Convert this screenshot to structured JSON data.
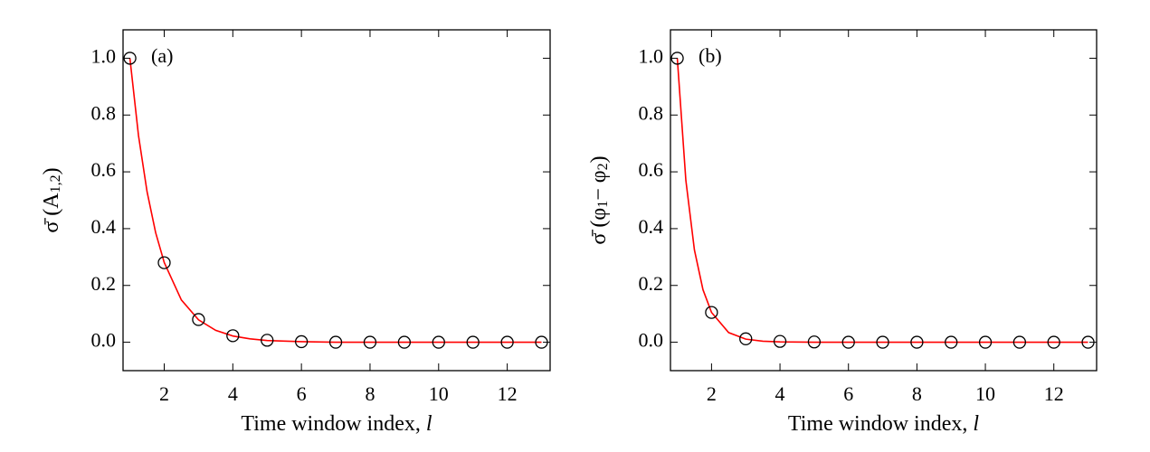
{
  "chart_data": [
    {
      "type": "scatter",
      "panel_label": "(a)",
      "xlabel": [
        "Time window index, ",
        "l"
      ],
      "ylabel": [
        "σ̄ (A",
        "1,2",
        ")"
      ],
      "xlim": [
        0.8,
        13.25
      ],
      "ylim": [
        -0.1,
        1.1
      ],
      "xticks": [
        2,
        4,
        6,
        8,
        10,
        12
      ],
      "yticks": [
        {
          "value": 0,
          "label": "0.0"
        },
        0.2,
        0.4,
        0.6,
        0.8,
        {
          "value": 1,
          "label": "1.0"
        }
      ],
      "series": [
        {
          "type": "line",
          "color": "#ff0000",
          "x": [
            1,
            1.25,
            1.5,
            1.75,
            2,
            2.5,
            3,
            3.5,
            4,
            4.5,
            5,
            6,
            7,
            13
          ],
          "values": [
            1,
            0.728,
            0.53,
            0.386,
            0.281,
            0.149,
            0.079,
            0.042,
            0.022,
            0.012,
            0.006,
            0.002,
            0,
            0
          ]
        },
        {
          "type": "scatter",
          "color": "#000000",
          "x": [
            1,
            2,
            3,
            4,
            5,
            6,
            7,
            8,
            9,
            10,
            11,
            12,
            13
          ],
          "values": [
            1,
            0.28,
            0.08,
            0.023,
            0.007,
            0.002,
            0,
            0,
            0,
            0,
            0,
            0,
            0
          ]
        }
      ]
    },
    {
      "type": "scatter",
      "panel_label": "(b)",
      "xlabel": [
        "Time window index, ",
        "l"
      ],
      "ylabel": [
        "σ̄ (φ",
        "1",
        "− φ",
        "2",
        ")"
      ],
      "xlim": [
        0.8,
        13.25
      ],
      "ylim": [
        -0.1,
        1.1
      ],
      "xticks": [
        2,
        4,
        6,
        8,
        10,
        12
      ],
      "yticks": [
        {
          "value": 0,
          "label": "0.0"
        },
        0.2,
        0.4,
        0.6,
        0.8,
        {
          "value": 1,
          "label": "1.0"
        }
      ],
      "series": [
        {
          "type": "line",
          "color": "#ff0000",
          "x": [
            1,
            1.25,
            1.5,
            1.75,
            2,
            2.5,
            3,
            3.5,
            4,
            5,
            13
          ],
          "values": [
            1,
            0.57,
            0.325,
            0.185,
            0.105,
            0.034,
            0.011,
            0.0036,
            0.0012,
            0.0001,
            0
          ]
        },
        {
          "type": "scatter",
          "color": "#000000",
          "x": [
            1,
            2,
            3,
            4,
            5,
            6,
            7,
            8,
            9,
            10,
            11,
            12,
            13
          ],
          "values": [
            1,
            0.105,
            0.012,
            0.003,
            0.001,
            0,
            0,
            0,
            0,
            0,
            0,
            0,
            0
          ]
        }
      ]
    }
  ]
}
